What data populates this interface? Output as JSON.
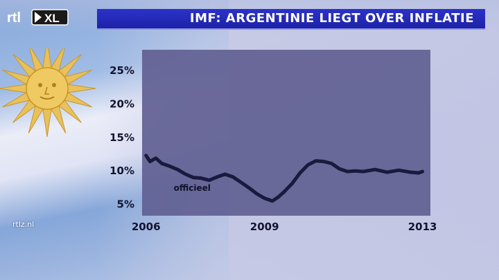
{
  "header": {
    "logo_rtl": "rtl",
    "logo_xl": "XL",
    "title": "IMF: ARGENTINIE LIEGT OVER INFLATIE"
  },
  "footer": {
    "source": "rtlz.nl"
  },
  "colors": {
    "title_bar": "#2020b0",
    "plot_bg": "#615f93",
    "line": "#1a1a3d",
    "axis_text": "#14142e"
  },
  "chart_data": {
    "type": "line",
    "title": "",
    "xlabel": "",
    "ylabel": "",
    "x_ticks": [
      2006,
      2009,
      2013
    ],
    "y_ticks": [
      "25%",
      "20%",
      "15%",
      "10%",
      "5%"
    ],
    "y_tick_values": [
      25,
      20,
      15,
      10,
      5
    ],
    "xlim": [
      2005.9,
      2013.2
    ],
    "ylim": [
      3.2,
      28
    ],
    "grid": false,
    "annotations": [
      {
        "text": "officieel",
        "x": 2006.7,
        "y": 6.9
      }
    ],
    "series": [
      {
        "name": "",
        "x": [
          2006.0,
          2006.1,
          2006.25,
          2006.4,
          2006.6,
          2006.8,
          2007.0,
          2007.2,
          2007.4,
          2007.6,
          2007.8,
          2008.0,
          2008.2,
          2008.4,
          2008.6,
          2008.8,
          2009.0,
          2009.2,
          2009.35,
          2009.5,
          2009.7,
          2009.9,
          2010.1,
          2010.3,
          2010.5,
          2010.7,
          2010.9,
          2011.1,
          2011.3,
          2011.5,
          2011.8,
          2012.1,
          2012.4,
          2012.7,
          2012.9,
          2013.0
        ],
        "y": [
          12.2,
          11.3,
          11.8,
          11.0,
          10.6,
          10.1,
          9.4,
          8.9,
          8.8,
          8.5,
          9.0,
          9.4,
          9.0,
          8.2,
          7.4,
          6.5,
          5.8,
          5.4,
          6.0,
          6.8,
          8.0,
          9.6,
          10.8,
          11.4,
          11.3,
          11.0,
          10.2,
          9.8,
          9.9,
          9.8,
          10.1,
          9.7,
          10.0,
          9.7,
          9.6,
          9.8
        ]
      }
    ]
  }
}
